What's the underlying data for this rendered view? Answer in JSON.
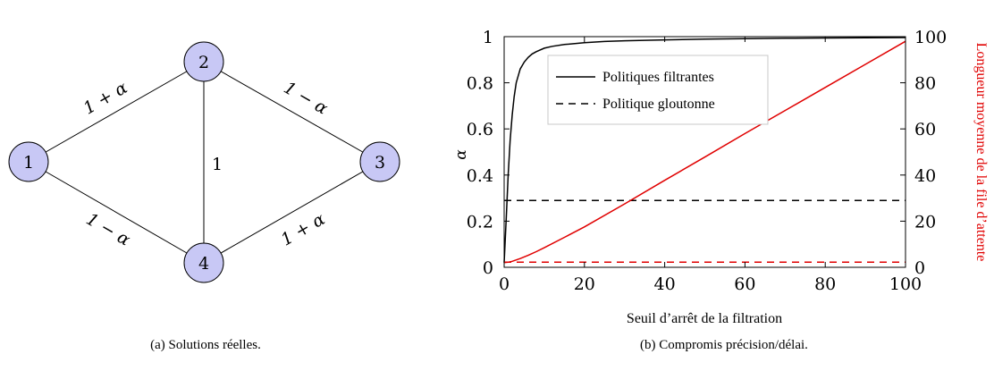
{
  "graph": {
    "nodes": [
      "1",
      "2",
      "3",
      "4"
    ],
    "edges": [
      {
        "from": "1",
        "to": "2",
        "label": "1 + α"
      },
      {
        "from": "2",
        "to": "3",
        "label": "1 − α"
      },
      {
        "from": "1",
        "to": "4",
        "label": "1 − α"
      },
      {
        "from": "4",
        "to": "3",
        "label": "1 + α"
      },
      {
        "from": "2",
        "to": "4",
        "label": "1"
      }
    ],
    "node_color": "#c8c8f5",
    "caption": "(a) Solutions réelles."
  },
  "chart_data": {
    "type": "line",
    "xlabel": "Seuil d’arrêt de la filtration",
    "ylabel": "α",
    "y2label": "Longueur moyenne de la file d’attente",
    "xlim": [
      0,
      100
    ],
    "ylim": [
      0,
      1
    ],
    "y2lim": [
      0,
      100
    ],
    "xticks": [
      "0",
      "20",
      "40",
      "60",
      "80",
      "100"
    ],
    "yticks": [
      "0",
      "0.2",
      "0.4",
      "0.6",
      "0.8",
      "1"
    ],
    "y2ticks": [
      "0",
      "20",
      "40",
      "60",
      "80",
      "100"
    ],
    "grid": false,
    "legend": {
      "position": "upper-right",
      "entries": [
        "Politiques filtrantes",
        "Politique gloutonne"
      ]
    },
    "series": [
      {
        "name": "Politiques filtrantes",
        "axis": "left",
        "color": "#000000",
        "dash": "solid",
        "x": [
          0,
          0.5,
          1,
          1.5,
          2,
          2.5,
          3,
          4,
          5,
          6,
          7,
          8,
          10,
          12,
          15,
          20,
          25,
          30,
          40,
          50,
          60,
          70,
          80,
          90,
          100
        ],
        "y": [
          0.02,
          0.2,
          0.4,
          0.55,
          0.66,
          0.74,
          0.8,
          0.86,
          0.89,
          0.91,
          0.925,
          0.935,
          0.95,
          0.958,
          0.966,
          0.974,
          0.979,
          0.982,
          0.986,
          0.989,
          0.991,
          0.993,
          0.994,
          0.995,
          0.996
        ]
      },
      {
        "name": "Politique gloutonne",
        "axis": "left",
        "color": "#000000",
        "dash": "dashed",
        "x": [
          0,
          100
        ],
        "y": [
          0.29,
          0.29
        ]
      },
      {
        "axis": "right",
        "color": "#e00000",
        "dash": "solid",
        "x": [
          0,
          1,
          2,
          4,
          6,
          8,
          10,
          15,
          20,
          30,
          40,
          50,
          60,
          70,
          80,
          90,
          100
        ],
        "y": [
          2,
          2.2,
          2.6,
          3.8,
          5.2,
          6.8,
          8.5,
          13,
          17.5,
          27.5,
          37.7,
          47.8,
          58,
          68,
          78,
          88,
          98
        ]
      },
      {
        "axis": "right",
        "color": "#e00000",
        "dash": "dashed",
        "x": [
          0,
          100
        ],
        "y": [
          2.2,
          2.2
        ]
      }
    ],
    "caption": "(b) Compromis précision/délai."
  }
}
